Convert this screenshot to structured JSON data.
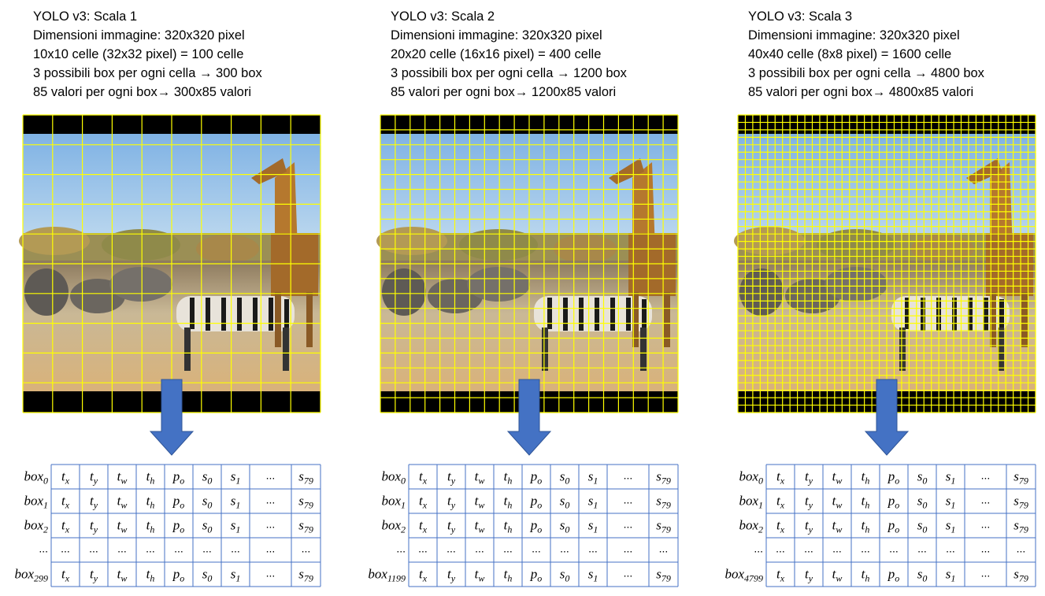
{
  "panels": [
    {
      "lines": [
        "YOLO v3: Scala 1",
        "Dimensioni immagine: 320x320 pixel",
        "10x10 celle (32x32 pixel) = 100 celle",
        "3 possibili box per ogni cella → 300 box",
        "85 valori per ogni box→ 300x85 valori"
      ],
      "grid": 10,
      "table": {
        "rows": [
          {
            "label": {
              "base": "box",
              "sub": "0"
            },
            "cells": [
              {
                "base": "t",
                "sub": "x"
              },
              {
                "base": "t",
                "sub": "y"
              },
              {
                "base": "t",
                "sub": "w"
              },
              {
                "base": "t",
                "sub": "h"
              },
              {
                "base": "p",
                "sub": "o"
              },
              {
                "base": "s",
                "sub": "0"
              },
              {
                "base": "s",
                "sub": "1"
              },
              "...",
              {
                "base": "s",
                "sub": "79"
              }
            ]
          },
          {
            "label": {
              "base": "box",
              "sub": "1"
            },
            "cells": [
              {
                "base": "t",
                "sub": "x"
              },
              {
                "base": "t",
                "sub": "y"
              },
              {
                "base": "t",
                "sub": "w"
              },
              {
                "base": "t",
                "sub": "h"
              },
              {
                "base": "p",
                "sub": "o"
              },
              {
                "base": "s",
                "sub": "0"
              },
              {
                "base": "s",
                "sub": "1"
              },
              "...",
              {
                "base": "s",
                "sub": "79"
              }
            ]
          },
          {
            "label": {
              "base": "box",
              "sub": "2"
            },
            "cells": [
              {
                "base": "t",
                "sub": "x"
              },
              {
                "base": "t",
                "sub": "y"
              },
              {
                "base": "t",
                "sub": "w"
              },
              {
                "base": "t",
                "sub": "h"
              },
              {
                "base": "p",
                "sub": "o"
              },
              {
                "base": "s",
                "sub": "0"
              },
              {
                "base": "s",
                "sub": "1"
              },
              "...",
              {
                "base": "s",
                "sub": "79"
              }
            ]
          },
          {
            "label": "...",
            "cells": [
              "...",
              "...",
              "...",
              "...",
              "...",
              "...",
              "...",
              "...",
              "..."
            ]
          },
          {
            "label": {
              "base": "box",
              "sub": "299"
            },
            "cells": [
              {
                "base": "t",
                "sub": "x"
              },
              {
                "base": "t",
                "sub": "y"
              },
              {
                "base": "t",
                "sub": "w"
              },
              {
                "base": "t",
                "sub": "h"
              },
              {
                "base": "p",
                "sub": "o"
              },
              {
                "base": "s",
                "sub": "0"
              },
              {
                "base": "s",
                "sub": "1"
              },
              "...",
              {
                "base": "s",
                "sub": "79"
              }
            ]
          }
        ]
      }
    },
    {
      "lines": [
        "YOLO v3: Scala 2",
        "Dimensioni immagine: 320x320 pixel",
        "20x20 celle (16x16 pixel) = 400 celle",
        "3 possibili box per ogni cella → 1200 box",
        "85 valori per ogni box→ 1200x85 valori"
      ],
      "grid": 20,
      "table": {
        "rows": [
          {
            "label": {
              "base": "box",
              "sub": "0"
            },
            "cells": [
              {
                "base": "t",
                "sub": "x"
              },
              {
                "base": "t",
                "sub": "y"
              },
              {
                "base": "t",
                "sub": "w"
              },
              {
                "base": "t",
                "sub": "h"
              },
              {
                "base": "p",
                "sub": "o"
              },
              {
                "base": "s",
                "sub": "0"
              },
              {
                "base": "s",
                "sub": "1"
              },
              "...",
              {
                "base": "s",
                "sub": "79"
              }
            ]
          },
          {
            "label": {
              "base": "box",
              "sub": "1"
            },
            "cells": [
              {
                "base": "t",
                "sub": "x"
              },
              {
                "base": "t",
                "sub": "y"
              },
              {
                "base": "t",
                "sub": "w"
              },
              {
                "base": "t",
                "sub": "h"
              },
              {
                "base": "p",
                "sub": "o"
              },
              {
                "base": "s",
                "sub": "0"
              },
              {
                "base": "s",
                "sub": "1"
              },
              "...",
              {
                "base": "s",
                "sub": "79"
              }
            ]
          },
          {
            "label": {
              "base": "box",
              "sub": "2"
            },
            "cells": [
              {
                "base": "t",
                "sub": "x"
              },
              {
                "base": "t",
                "sub": "y"
              },
              {
                "base": "t",
                "sub": "w"
              },
              {
                "base": "t",
                "sub": "h"
              },
              {
                "base": "p",
                "sub": "o"
              },
              {
                "base": "s",
                "sub": "0"
              },
              {
                "base": "s",
                "sub": "1"
              },
              "...",
              {
                "base": "s",
                "sub": "79"
              }
            ]
          },
          {
            "label": "...",
            "cells": [
              "...",
              "...",
              "...",
              "...",
              "...",
              "...",
              "...",
              "...",
              "..."
            ]
          },
          {
            "label": {
              "base": "box",
              "sub": "1199"
            },
            "cells": [
              {
                "base": "t",
                "sub": "x"
              },
              {
                "base": "t",
                "sub": "y"
              },
              {
                "base": "t",
                "sub": "w"
              },
              {
                "base": "t",
                "sub": "h"
              },
              {
                "base": "p",
                "sub": "o"
              },
              {
                "base": "s",
                "sub": "0"
              },
              {
                "base": "s",
                "sub": "1"
              },
              "...",
              {
                "base": "s",
                "sub": "79"
              }
            ]
          }
        ]
      }
    },
    {
      "lines": [
        "YOLO v3: Scala 3",
        "Dimensioni immagine: 320x320 pixel",
        "40x40 celle (8x8 pixel) = 1600 celle",
        "3 possibili box per ogni cella → 4800 box",
        "85 valori per ogni box→ 4800x85 valori"
      ],
      "grid": 40,
      "table": {
        "rows": [
          {
            "label": {
              "base": "box",
              "sub": "0"
            },
            "cells": [
              {
                "base": "t",
                "sub": "x"
              },
              {
                "base": "t",
                "sub": "y"
              },
              {
                "base": "t",
                "sub": "w"
              },
              {
                "base": "t",
                "sub": "h"
              },
              {
                "base": "p",
                "sub": "o"
              },
              {
                "base": "s",
                "sub": "0"
              },
              {
                "base": "s",
                "sub": "1"
              },
              "...",
              {
                "base": "s",
                "sub": "79"
              }
            ]
          },
          {
            "label": {
              "base": "box",
              "sub": "1"
            },
            "cells": [
              {
                "base": "t",
                "sub": "x"
              },
              {
                "base": "t",
                "sub": "y"
              },
              {
                "base": "t",
                "sub": "w"
              },
              {
                "base": "t",
                "sub": "h"
              },
              {
                "base": "p",
                "sub": "o"
              },
              {
                "base": "s",
                "sub": "0"
              },
              {
                "base": "s",
                "sub": "1"
              },
              "...",
              {
                "base": "s",
                "sub": "79"
              }
            ]
          },
          {
            "label": {
              "base": "box",
              "sub": "2"
            },
            "cells": [
              {
                "base": "t",
                "sub": "x"
              },
              {
                "base": "t",
                "sub": "y"
              },
              {
                "base": "t",
                "sub": "w"
              },
              {
                "base": "t",
                "sub": "h"
              },
              {
                "base": "p",
                "sub": "o"
              },
              {
                "base": "s",
                "sub": "0"
              },
              {
                "base": "s",
                "sub": "1"
              },
              "...",
              {
                "base": "s",
                "sub": "79"
              }
            ]
          },
          {
            "label": "...",
            "cells": [
              "...",
              "...",
              "...",
              "...",
              "...",
              "...",
              "...",
              "...",
              "..."
            ]
          },
          {
            "label": {
              "base": "box",
              "sub": "4799"
            },
            "cells": [
              {
                "base": "t",
                "sub": "x"
              },
              {
                "base": "t",
                "sub": "y"
              },
              {
                "base": "t",
                "sub": "w"
              },
              {
                "base": "t",
                "sub": "h"
              },
              {
                "base": "p",
                "sub": "o"
              },
              {
                "base": "s",
                "sub": "0"
              },
              {
                "base": "s",
                "sub": "1"
              },
              "...",
              {
                "base": "s",
                "sub": "79"
              }
            ]
          }
        ]
      }
    }
  ]
}
